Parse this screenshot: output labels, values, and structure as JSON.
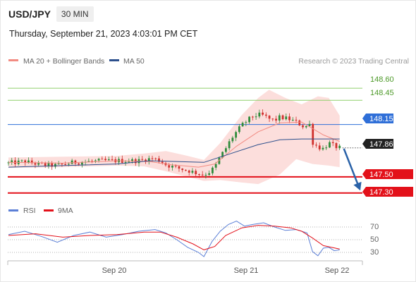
{
  "header": {
    "symbol": "USD/JPY",
    "timeframe": "30 MIN",
    "datetime": "Thursday, September 21, 2023 4:03:01 PM CET"
  },
  "legend": {
    "items": [
      {
        "label": "MA 20 + Bollinger Bands",
        "color": "#f28b82"
      },
      {
        "label": "MA 50",
        "color": "#2c4f8c"
      }
    ],
    "credit": "Research © 2023 Trading Central"
  },
  "colors": {
    "up": "#2e8b3a",
    "down": "#d0312d",
    "resistance": "#8fcf6c",
    "pivot": "#2f6fd8",
    "support": "#e3111a",
    "ma20": "#f28b82",
    "ma50": "#2c4f8c",
    "band": "#fbd8d6",
    "rsi": "#5b7fd6",
    "rsi_ma": "#e3111a",
    "arrow": "#2a62a8",
    "last_price": "#222222"
  },
  "levels": {
    "resistance_2": "148.60",
    "resistance_1": "148.45",
    "pivot": "148.15",
    "last_price": "147.86",
    "support_1": "147.50",
    "support_2": "147.30"
  },
  "rsi_panel": {
    "legend": [
      {
        "label": "RSI",
        "color": "#5b7fd6"
      },
      {
        "label": "9MA",
        "color": "#e3111a"
      }
    ],
    "ticks": [
      "70",
      "50",
      "30"
    ]
  },
  "x_axis": {
    "labels": [
      "Sep 20",
      "Sep 21",
      "Sep 22"
    ]
  },
  "chart_data": {
    "type": "candlestick",
    "y_unit": "JPY per USD",
    "ylim": [
      147.28,
      148.75
    ],
    "candle_count": 100,
    "price_path": [
      [
        0,
        147.67
      ],
      [
        6,
        147.69
      ],
      [
        12,
        147.65
      ],
      [
        18,
        147.64
      ],
      [
        24,
        147.68
      ],
      [
        30,
        147.69
      ],
      [
        35,
        147.7
      ],
      [
        42,
        147.7
      ],
      [
        48,
        147.7
      ],
      [
        53,
        147.73
      ],
      [
        56,
        147.7
      ],
      [
        58,
        147.65
      ],
      [
        62,
        147.61
      ],
      [
        66,
        147.58
      ],
      [
        70,
        147.54
      ],
      [
        72,
        147.53
      ],
      [
        74,
        147.56
      ],
      [
        76,
        147.62
      ],
      [
        78,
        147.75
      ],
      [
        80,
        147.85
      ],
      [
        82,
        147.97
      ],
      [
        84,
        148.06
      ],
      [
        86,
        148.14
      ],
      [
        88,
        148.2
      ],
      [
        90,
        148.25
      ],
      [
        92,
        148.27
      ],
      [
        94,
        148.26
      ],
      [
        96,
        148.22
      ],
      [
        98,
        148.2
      ],
      [
        100,
        148.24
      ],
      [
        103,
        148.22
      ],
      [
        106,
        148.18
      ],
      [
        109,
        148.12
      ],
      [
        111,
        148.15
      ],
      [
        112,
        147.93
      ],
      [
        114,
        147.87
      ],
      [
        116,
        147.85
      ],
      [
        118,
        147.92
      ],
      [
        120,
        147.88
      ],
      [
        122,
        147.86
      ]
    ],
    "ma20_path": [
      [
        0,
        147.68
      ],
      [
        20,
        147.67
      ],
      [
        40,
        147.7
      ],
      [
        52,
        147.69
      ],
      [
        60,
        147.65
      ],
      [
        70,
        147.62
      ],
      [
        76,
        147.66
      ],
      [
        84,
        147.88
      ],
      [
        92,
        148.06
      ],
      [
        100,
        148.17
      ],
      [
        108,
        148.18
      ],
      [
        116,
        148.02
      ],
      [
        122,
        147.94
      ]
    ],
    "ma50_path": [
      [
        0,
        147.62
      ],
      [
        20,
        147.64
      ],
      [
        40,
        147.66
      ],
      [
        52,
        147.7
      ],
      [
        62,
        147.69
      ],
      [
        72,
        147.68
      ],
      [
        82,
        147.79
      ],
      [
        92,
        147.9
      ],
      [
        100,
        147.96
      ],
      [
        108,
        147.97
      ],
      [
        116,
        147.97
      ],
      [
        122,
        147.97
      ]
    ],
    "band_upper": [
      [
        0,
        147.74
      ],
      [
        20,
        147.75
      ],
      [
        40,
        147.76
      ],
      [
        50,
        147.79
      ],
      [
        58,
        147.82
      ],
      [
        66,
        147.76
      ],
      [
        72,
        147.71
      ],
      [
        78,
        147.92
      ],
      [
        86,
        148.27
      ],
      [
        92,
        148.48
      ],
      [
        96,
        148.58
      ],
      [
        102,
        148.48
      ],
      [
        108,
        148.4
      ],
      [
        114,
        148.5
      ],
      [
        118,
        148.48
      ],
      [
        122,
        148.26
      ]
    ],
    "band_lower": [
      [
        0,
        147.61
      ],
      [
        20,
        147.62
      ],
      [
        40,
        147.64
      ],
      [
        50,
        147.63
      ],
      [
        58,
        147.57
      ],
      [
        66,
        147.5
      ],
      [
        72,
        147.45
      ],
      [
        78,
        147.46
      ],
      [
        86,
        147.43
      ],
      [
        92,
        147.41
      ],
      [
        100,
        147.53
      ],
      [
        106,
        147.72
      ],
      [
        112,
        147.66
      ],
      [
        118,
        147.64
      ],
      [
        122,
        147.62
      ]
    ],
    "forecast_arrow": {
      "from": 147.85,
      "to": 147.33
    },
    "horizontal_levels": [
      {
        "name": "resistance_2",
        "value": 148.6
      },
      {
        "name": "resistance_1",
        "value": 148.45
      },
      {
        "name": "pivot",
        "value": 148.15
      },
      {
        "name": "support_1",
        "value": 147.5
      },
      {
        "name": "support_2",
        "value": 147.3
      }
    ],
    "rsi": {
      "ylim": [
        20,
        80
      ],
      "rsi_path": [
        [
          0,
          56
        ],
        [
          6,
          60
        ],
        [
          12,
          54
        ],
        [
          18,
          47
        ],
        [
          24,
          55
        ],
        [
          30,
          59
        ],
        [
          36,
          53
        ],
        [
          42,
          56
        ],
        [
          48,
          60
        ],
        [
          54,
          62
        ],
        [
          58,
          58
        ],
        [
          62,
          50
        ],
        [
          66,
          41
        ],
        [
          70,
          35
        ],
        [
          72,
          30
        ],
        [
          75,
          48
        ],
        [
          78,
          60
        ],
        [
          81,
          68
        ],
        [
          84,
          72
        ],
        [
          87,
          66
        ],
        [
          90,
          68
        ],
        [
          94,
          70
        ],
        [
          98,
          65
        ],
        [
          102,
          61
        ],
        [
          106,
          62
        ],
        [
          110,
          58
        ],
        [
          112,
          36
        ],
        [
          114,
          31
        ],
        [
          116,
          40
        ],
        [
          118,
          41
        ],
        [
          120,
          37
        ],
        [
          122,
          38
        ]
      ],
      "ma9_path": [
        [
          0,
          55
        ],
        [
          10,
          57
        ],
        [
          20,
          53
        ],
        [
          30,
          55
        ],
        [
          40,
          56
        ],
        [
          50,
          59
        ],
        [
          56,
          59
        ],
        [
          62,
          53
        ],
        [
          68,
          45
        ],
        [
          72,
          38
        ],
        [
          76,
          42
        ],
        [
          80,
          55
        ],
        [
          86,
          64
        ],
        [
          92,
          67
        ],
        [
          98,
          66
        ],
        [
          104,
          64
        ],
        [
          108,
          60
        ],
        [
          112,
          52
        ],
        [
          116,
          43
        ],
        [
          122,
          39
        ]
      ]
    }
  }
}
